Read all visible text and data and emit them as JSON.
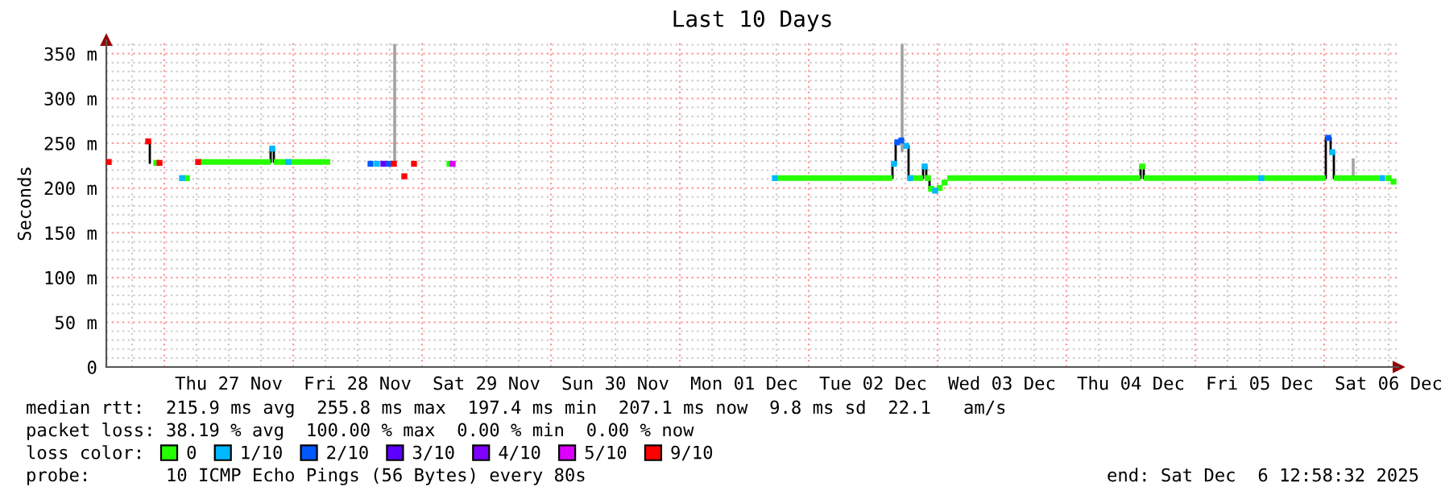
{
  "chart_data": {
    "type": "line",
    "title": "Last 10 Days",
    "ylabel": "Seconds",
    "legend_title": "loss color:",
    "legend": "bottom",
    "grid": true,
    "annotations": [
      "median rtt:  215.9 ms avg  255.8 ms max  197.4 ms min  207.1 ms now  9.8 ms sd  22.1   am/s",
      "packet loss: 38.19 % avg  100.00 % max  0.00 % min  0.00 % now",
      "probe:       10 ICMP Echo Pings (56 Bytes) every 80s",
      "end: Sat Dec  6 12:58:32 2025"
    ],
    "xlim": [
      "2025-11-26T13:12",
      "2025-12-06T13:48"
    ],
    "xticks": [
      {
        "value": "2025-11-26T18:00",
        "label": null
      },
      {
        "value": "2025-11-27T00:00",
        "label": null
      },
      {
        "value": "2025-11-27T06:00",
        "label": null
      },
      {
        "value": "2025-11-27T12:00",
        "label": "Thu 27 Nov"
      },
      {
        "value": "2025-11-27T18:00",
        "label": null
      },
      {
        "value": "2025-11-28T00:00",
        "label": null
      },
      {
        "value": "2025-11-28T06:00",
        "label": null
      },
      {
        "value": "2025-11-28T12:00",
        "label": "Fri 28 Nov"
      },
      {
        "value": "2025-11-28T18:00",
        "label": null
      },
      {
        "value": "2025-11-29T00:00",
        "label": null
      },
      {
        "value": "2025-11-29T06:00",
        "label": null
      },
      {
        "value": "2025-11-29T12:00",
        "label": "Sat 29 Nov"
      },
      {
        "value": "2025-11-29T18:00",
        "label": null
      },
      {
        "value": "2025-11-30T00:00",
        "label": null
      },
      {
        "value": "2025-11-30T06:00",
        "label": null
      },
      {
        "value": "2025-11-30T12:00",
        "label": "Sun 30 Nov"
      },
      {
        "value": "2025-11-30T18:00",
        "label": null
      },
      {
        "value": "2025-12-01T00:00",
        "label": null
      },
      {
        "value": "2025-12-01T06:00",
        "label": null
      },
      {
        "value": "2025-12-01T12:00",
        "label": "Mon 01 Dec"
      },
      {
        "value": "2025-12-01T18:00",
        "label": null
      },
      {
        "value": "2025-12-02T00:00",
        "label": null
      },
      {
        "value": "2025-12-02T06:00",
        "label": null
      },
      {
        "value": "2025-12-02T12:00",
        "label": "Tue 02 Dec"
      },
      {
        "value": "2025-12-02T18:00",
        "label": null
      },
      {
        "value": "2025-12-03T00:00",
        "label": null
      },
      {
        "value": "2025-12-03T06:00",
        "label": null
      },
      {
        "value": "2025-12-03T12:00",
        "label": "Wed 03 Dec"
      },
      {
        "value": "2025-12-03T18:00",
        "label": null
      },
      {
        "value": "2025-12-04T00:00",
        "label": null
      },
      {
        "value": "2025-12-04T06:00",
        "label": null
      },
      {
        "value": "2025-12-04T12:00",
        "label": "Thu 04 Dec"
      },
      {
        "value": "2025-12-04T18:00",
        "label": null
      },
      {
        "value": "2025-12-05T00:00",
        "label": null
      },
      {
        "value": "2025-12-05T06:00",
        "label": null
      },
      {
        "value": "2025-12-05T12:00",
        "label": "Fri 05 Dec"
      },
      {
        "value": "2025-12-05T18:00",
        "label": null
      },
      {
        "value": "2025-12-06T00:00",
        "label": null
      },
      {
        "value": "2025-12-06T06:00",
        "label": null
      },
      {
        "value": "2025-12-06T12:00",
        "label": "Sat 06 Dec"
      }
    ],
    "ylim": [
      0,
      365
    ],
    "yticks": [
      {
        "value": 0,
        "label": "0"
      },
      {
        "value": 10,
        "label": null
      },
      {
        "value": 20,
        "label": null
      },
      {
        "value": 30,
        "label": null
      },
      {
        "value": 40,
        "label": null
      },
      {
        "value": 50,
        "label": "50 m"
      },
      {
        "value": 60,
        "label": null
      },
      {
        "value": 70,
        "label": null
      },
      {
        "value": 80,
        "label": null
      },
      {
        "value": 90,
        "label": null
      },
      {
        "value": 100,
        "label": "100 m"
      },
      {
        "value": 110,
        "label": null
      },
      {
        "value": 120,
        "label": null
      },
      {
        "value": 130,
        "label": null
      },
      {
        "value": 140,
        "label": null
      },
      {
        "value": 150,
        "label": "150 m"
      },
      {
        "value": 160,
        "label": null
      },
      {
        "value": 170,
        "label": null
      },
      {
        "value": 180,
        "label": null
      },
      {
        "value": 190,
        "label": null
      },
      {
        "value": 200,
        "label": "200 m"
      },
      {
        "value": 210,
        "label": null
      },
      {
        "value": 220,
        "label": null
      },
      {
        "value": 230,
        "label": null
      },
      {
        "value": 240,
        "label": null
      },
      {
        "value": 250,
        "label": "250 m"
      },
      {
        "value": 260,
        "label": null
      },
      {
        "value": 270,
        "label": null
      },
      {
        "value": 280,
        "label": null
      },
      {
        "value": 290,
        "label": null
      },
      {
        "value": 300,
        "label": "300 m"
      },
      {
        "value": 310,
        "label": null
      },
      {
        "value": 320,
        "label": null
      },
      {
        "value": 330,
        "label": null
      },
      {
        "value": 340,
        "label": null
      },
      {
        "value": 350,
        "label": "350 m"
      },
      {
        "value": 360,
        "label": null
      }
    ],
    "series": [
      {
        "type": "bar",
        "color": "#a0a0a0",
        "x": [
          "2025-11-28T18:54",
          "2025-12-02T17:24",
          "2025-12-06T05:24"
        ],
        "base": [
          227,
          240,
          212
        ],
        "values": [
          134,
          121,
          21
        ]
      },
      {
        "color": "#000000",
        "x": [
          "2025-11-26T21:18",
          "2025-11-26T21:18",
          null,
          "2025-11-27T19:48",
          "2025-11-27T19:48",
          null,
          "2025-11-27T20:24",
          "2025-11-27T20:24",
          null,
          "2025-12-02T15:36",
          "2025-12-02T15:36",
          null,
          "2025-12-02T16:12",
          "2025-12-02T16:12",
          null,
          "2025-12-02T18:36",
          "2025-12-02T18:36",
          null,
          "2025-12-02T21:18",
          "2025-12-02T21:18",
          null,
          "2025-12-02T21:54",
          "2025-12-02T21:54",
          null,
          "2025-12-02T22:30",
          "2025-12-02T22:30",
          null,
          "2025-12-04T13:48",
          "2025-12-04T13:48",
          null,
          "2025-12-04T14:24",
          "2025-12-04T14:24",
          null,
          "2025-12-06T00:18",
          "2025-12-06T00:18",
          null,
          "2025-12-06T01:12",
          "2025-12-06T01:12",
          null,
          "2025-12-06T01:48",
          "2025-12-06T01:48"
        ],
        "values": [
          252,
          228,
          null,
          229,
          244,
          null,
          244,
          229,
          null,
          211,
          227,
          null,
          227,
          251,
          null,
          247,
          211,
          null,
          211,
          224,
          null,
          224,
          211,
          null,
          211,
          199,
          null,
          211,
          224,
          null,
          224,
          211,
          null,
          211,
          256,
          null,
          256,
          240,
          null,
          240,
          211
        ]
      },
      {
        "type": "scatter",
        "marker": "square",
        "x": [
          "2025-11-26T22:30",
          "2025-11-27T04:12",
          "2025-11-29T05:06",
          "2025-12-02T22:12",
          "2025-12-02T22:48",
          "2025-12-03T00:24",
          "2025-12-03T01:18",
          "2025-12-04T14:06",
          "2025-12-06T12:00",
          "2025-12-06T12:54",
          "2025-11-27T03:18",
          "2025-11-27T20:06",
          "2025-11-27T23:06",
          "2025-11-28T15:36",
          "2025-12-01T17:42",
          "2025-12-02T15:54",
          "2025-12-02T18:09",
          "2025-12-02T18:54",
          "2025-12-02T21:36",
          "2025-12-02T23:33",
          "2025-12-05T12:18",
          "2025-12-06T01:30",
          "2025-12-06T10:48",
          "2025-11-28T14:24",
          "2025-11-28T17:51",
          "2025-12-02T16:30",
          "2025-12-02T17:15",
          "2025-12-06T00:45",
          "2025-11-28T16:48",
          "2025-11-29T05:42",
          "2025-11-26T13:39",
          "2025-11-26T21:00",
          "2025-11-26T23:06",
          "2025-11-27T06:18",
          "2025-11-28T18:45",
          "2025-11-28T20:42",
          "2025-11-28T22:30"
        ],
        "values": [
          228,
          211,
          227,
          211,
          199,
          200,
          206,
          224,
          211,
          207,
          211,
          244,
          229,
          227,
          211,
          227,
          247,
          211,
          224,
          197,
          211,
          240,
          211,
          227,
          227,
          251,
          253,
          256,
          227,
          227,
          229,
          252,
          228,
          229,
          227,
          213,
          227
        ],
        "colors": [
          "#26ff00",
          "#26ff00",
          "#26ff00",
          "#26ff00",
          "#26ff00",
          "#26ff00",
          "#26ff00",
          "#26ff00",
          "#26ff00",
          "#26ff00",
          "#00b8ff",
          "#00b8ff",
          "#00b8ff",
          "#00b8ff",
          "#00b8ff",
          "#00b8ff",
          "#00b8ff",
          "#00b8ff",
          "#00b8ff",
          "#00b8ff",
          "#00b8ff",
          "#00b8ff",
          "#00b8ff",
          "#0059ff",
          "#0059ff",
          "#0059ff",
          "#0059ff",
          "#0059ff",
          "#5e00ff",
          "#dd00ff",
          "#ff0000",
          "#ff0000",
          "#ff0000",
          "#ff0000",
          "#ff0000",
          "#ff0000",
          "#ff0000"
        ]
      },
      {
        "name": "0",
        "color": "#26ff00",
        "x": [
          "2025-11-27T06:36",
          "2025-11-27T19:48",
          null,
          "2025-11-27T20:24",
          "2025-11-27T22:48",
          null,
          "2025-11-27T23:24",
          "2025-11-28T06:54",
          null,
          "2025-12-01T18:00",
          "2025-12-02T15:36",
          null,
          "2025-12-02T19:12",
          "2025-12-02T21:18",
          null,
          "2025-12-03T01:48",
          "2025-12-04T13:48",
          null,
          "2025-12-04T14:24",
          "2025-12-05T12:00",
          null,
          "2025-12-05T12:36",
          "2025-12-06T00:18",
          null,
          "2025-12-06T01:48",
          "2025-12-06T10:12"
        ],
        "values": [
          229,
          229,
          null,
          229,
          229,
          null,
          229,
          229,
          null,
          211,
          211,
          null,
          211,
          211,
          null,
          211,
          211,
          null,
          211,
          211,
          null,
          211,
          211,
          null,
          211,
          211
        ]
      },
      {
        "name": "1/10",
        "color": "#00b8ff"
      },
      {
        "name": "2/10",
        "color": "#0059ff"
      },
      {
        "name": "3/10",
        "color": "#5e00ff"
      },
      {
        "name": "4/10",
        "color": "#7e00ff"
      },
      {
        "name": "5/10",
        "color": "#dd00ff"
      },
      {
        "name": "9/10",
        "color": "#ff0000"
      }
    ]
  }
}
